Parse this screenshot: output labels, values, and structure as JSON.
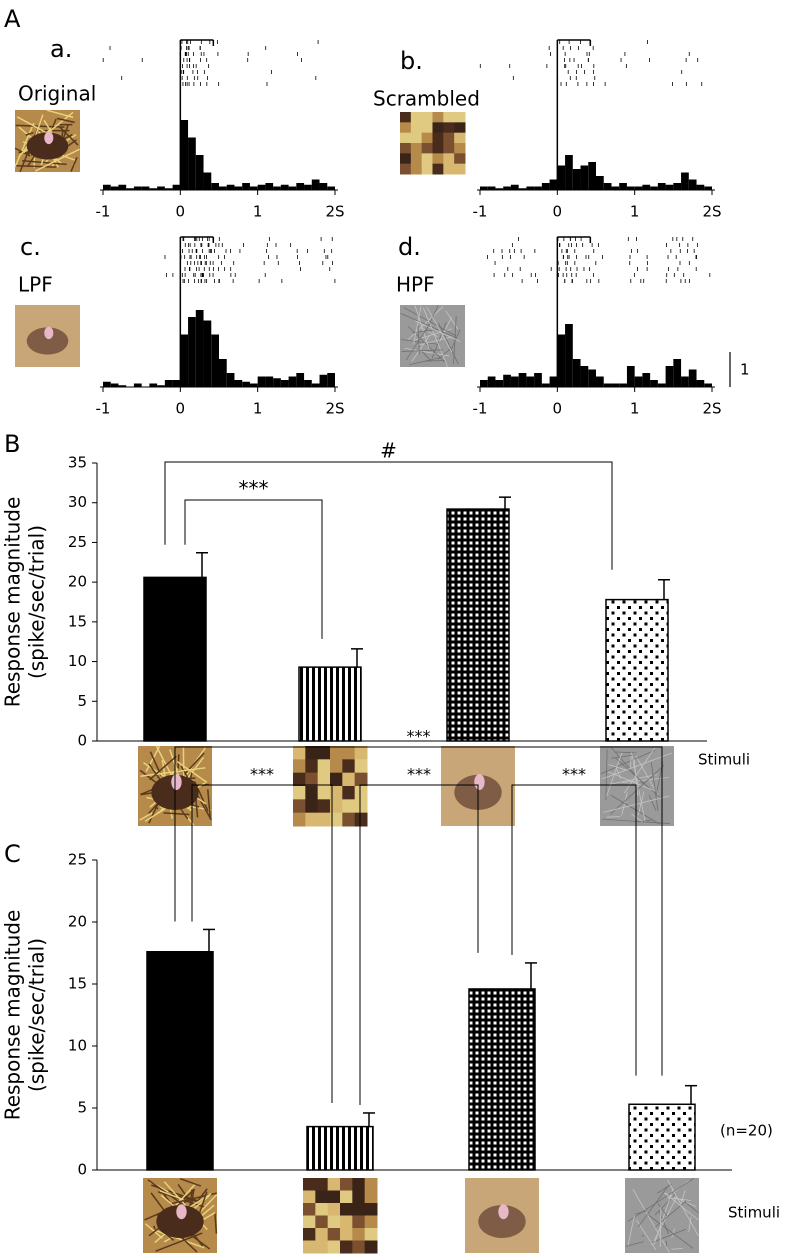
{
  "chart_data": [
    {
      "type": "histogram",
      "panel": "A",
      "label": "a.",
      "stimulus": "Original",
      "bins": [
        -1,
        -0.9,
        -0.8,
        -0.7,
        -0.6,
        -0.5,
        -0.4,
        -0.3,
        -0.2,
        -0.1,
        0,
        0.1,
        0.2,
        0.3,
        0.4,
        0.5,
        0.6,
        0.7,
        0.8,
        0.9,
        1,
        1.1,
        1.2,
        1.3,
        1.4,
        1.5,
        1.6,
        1.7,
        1.8,
        1.9,
        2
      ],
      "values": [
        0.15,
        0.1,
        0.15,
        0.05,
        0.1,
        0.1,
        0.05,
        0.1,
        0.05,
        0.15,
        2.0,
        1.5,
        1.0,
        0.5,
        0.2,
        0.1,
        0.15,
        0.1,
        0.2,
        0.1,
        0.15,
        0.2,
        0.1,
        0.15,
        0.1,
        0.2,
        0.15,
        0.3,
        0.2,
        0.1
      ],
      "xlim": [
        -1,
        2
      ],
      "xticks": [
        -1,
        0,
        1,
        {
          "value": 2,
          "label": "2S"
        }
      ],
      "ylim": [
        0,
        4
      ]
    },
    {
      "type": "histogram",
      "label": "b.",
      "stimulus": "Scrambled",
      "bins": [
        -1,
        -0.9,
        -0.8,
        -0.7,
        -0.6,
        -0.5,
        -0.4,
        -0.3,
        -0.2,
        -0.1,
        0,
        0.1,
        0.2,
        0.3,
        0.4,
        0.5,
        0.6,
        0.7,
        0.8,
        0.9,
        1,
        1.1,
        1.2,
        1.3,
        1.4,
        1.5,
        1.6,
        1.7,
        1.8,
        1.9,
        2
      ],
      "values": [
        0.1,
        0.1,
        0.05,
        0.1,
        0.15,
        0.05,
        0.1,
        0.1,
        0.2,
        0.3,
        0.7,
        1.0,
        0.6,
        0.7,
        0.8,
        0.4,
        0.2,
        0.1,
        0.2,
        0.1,
        0.1,
        0.15,
        0.1,
        0.2,
        0.15,
        0.2,
        0.5,
        0.3,
        0.15,
        0.1
      ],
      "xlim": [
        -1,
        2
      ],
      "xticks": [
        -1,
        0,
        1,
        {
          "value": 2,
          "label": "2S"
        }
      ],
      "ylim": [
        0,
        4
      ]
    },
    {
      "type": "histogram",
      "label": "c.",
      "stimulus": "LPF",
      "bins": [
        -1,
        -0.9,
        -0.8,
        -0.7,
        -0.6,
        -0.5,
        -0.4,
        -0.3,
        -0.2,
        -0.1,
        0,
        0.1,
        0.2,
        0.3,
        0.4,
        0.5,
        0.6,
        0.7,
        0.8,
        0.9,
        1,
        1.1,
        1.2,
        1.3,
        1.4,
        1.5,
        1.6,
        1.7,
        1.8,
        1.9,
        2
      ],
      "values": [
        0.15,
        0.1,
        0.05,
        0.0,
        0.1,
        0.0,
        0.1,
        0.05,
        0.2,
        0.2,
        1.5,
        2.0,
        2.2,
        1.9,
        1.5,
        0.8,
        0.4,
        0.2,
        0.15,
        0.1,
        0.3,
        0.3,
        0.25,
        0.2,
        0.3,
        0.4,
        0.2,
        0.1,
        0.35,
        0.4
      ],
      "xlim": [
        -1,
        2
      ],
      "xticks": [
        -1,
        0,
        1,
        {
          "value": 2,
          "label": "2S"
        }
      ],
      "ylim": [
        0,
        4
      ]
    },
    {
      "type": "histogram",
      "label": "d.",
      "stimulus": "HPF",
      "bins": [
        -1,
        -0.9,
        -0.8,
        -0.7,
        -0.6,
        -0.5,
        -0.4,
        -0.3,
        -0.2,
        -0.1,
        0,
        0.1,
        0.2,
        0.3,
        0.4,
        0.5,
        0.6,
        0.7,
        0.8,
        0.9,
        1,
        1.1,
        1.2,
        1.3,
        1.4,
        1.5,
        1.6,
        1.7,
        1.8,
        1.9,
        2
      ],
      "values": [
        0.2,
        0.3,
        0.2,
        0.35,
        0.3,
        0.4,
        0.3,
        0.4,
        0.1,
        0.3,
        1.5,
        1.8,
        0.8,
        0.6,
        0.5,
        0.3,
        0.1,
        0.1,
        0.1,
        0.6,
        0.3,
        0.4,
        0.2,
        0.1,
        0.6,
        0.8,
        0.3,
        0.5,
        0.2,
        0.1
      ],
      "xlim": [
        -1,
        2
      ],
      "xticks": [
        -1,
        0,
        1,
        {
          "value": 2,
          "label": "2S"
        }
      ],
      "ylim": [
        0,
        4
      ],
      "scale_bar": 1
    },
    {
      "type": "bar",
      "panel": "B",
      "ylabel": [
        "Response magnitude",
        "(spike/sec/trial)"
      ],
      "xlabel": "Stimuli",
      "categories": [
        null,
        null,
        null,
        null
      ],
      "values": [
        20.6,
        9.3,
        29.2,
        17.8
      ],
      "errors": [
        3.1,
        2.3,
        1.5,
        2.5
      ],
      "ylim": [
        0,
        35
      ],
      "yticks": [
        0,
        5,
        10,
        15,
        20,
        25,
        30,
        35
      ],
      "annotations": [
        "***",
        "#"
      ]
    },
    {
      "type": "bar",
      "panel": "C",
      "ylabel": [
        "Response magnitude",
        "(spike/sec/trial)"
      ],
      "xlabel": "Stimuli",
      "note": "(n=20)",
      "categories": [
        null,
        null,
        null,
        null
      ],
      "values": [
        17.6,
        3.5,
        14.6,
        5.3
      ],
      "errors": [
        1.8,
        1.1,
        2.1,
        1.5
      ],
      "ylim": [
        0,
        25
      ],
      "yticks": [
        0,
        5,
        10,
        15,
        20,
        25
      ],
      "annotations": [
        "***",
        "***",
        "***",
        "***"
      ]
    }
  ]
}
